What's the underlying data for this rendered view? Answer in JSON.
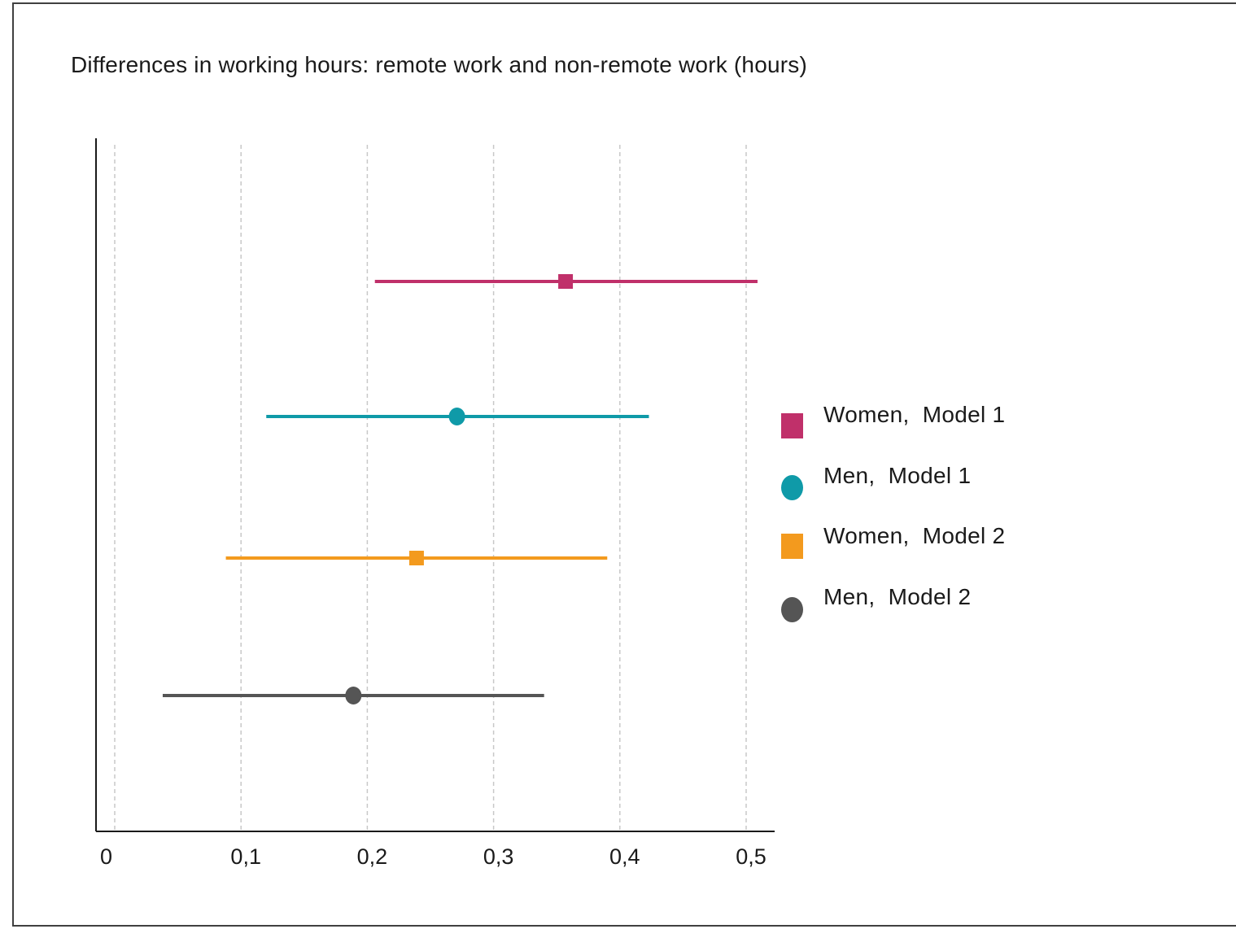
{
  "chart_data": {
    "type": "scatter",
    "subtype": "forest-plot",
    "title": "Differences in working hours: remote work and non-remote work (hours)",
    "xlabel": "",
    "ylabel": "",
    "xlim": [
      -0.015,
      0.525
    ],
    "xticks": [
      0,
      0.1,
      0.2,
      0.3,
      0.4,
      0.5
    ],
    "xtick_labels": [
      "0",
      "0,1",
      "0,2",
      "0,3",
      "0,4",
      "0,5"
    ],
    "grid": "vertical dashed",
    "legend_position": "right",
    "series": [
      {
        "name": "Women,  Model 1",
        "estimate": 0.357,
        "ci": [
          0.206,
          0.509
        ],
        "marker": "square",
        "color": "#c0306a"
      },
      {
        "name": "Men,  Model 1",
        "estimate": 0.271,
        "ci": [
          0.12,
          0.423
        ],
        "marker": "circle",
        "color": "#0f9aa8"
      },
      {
        "name": "Women,  Model 2",
        "estimate": 0.239,
        "ci": [
          0.088,
          0.39
        ],
        "marker": "square",
        "color": "#f39a1e"
      },
      {
        "name": "Men,  Model 2",
        "estimate": 0.189,
        "ci": [
          0.038,
          0.34
        ],
        "marker": "circle",
        "color": "#555555"
      }
    ]
  },
  "colors": {
    "axis": "#1a1a1a",
    "grid": "#c8c8c8",
    "frame": "#404040"
  }
}
